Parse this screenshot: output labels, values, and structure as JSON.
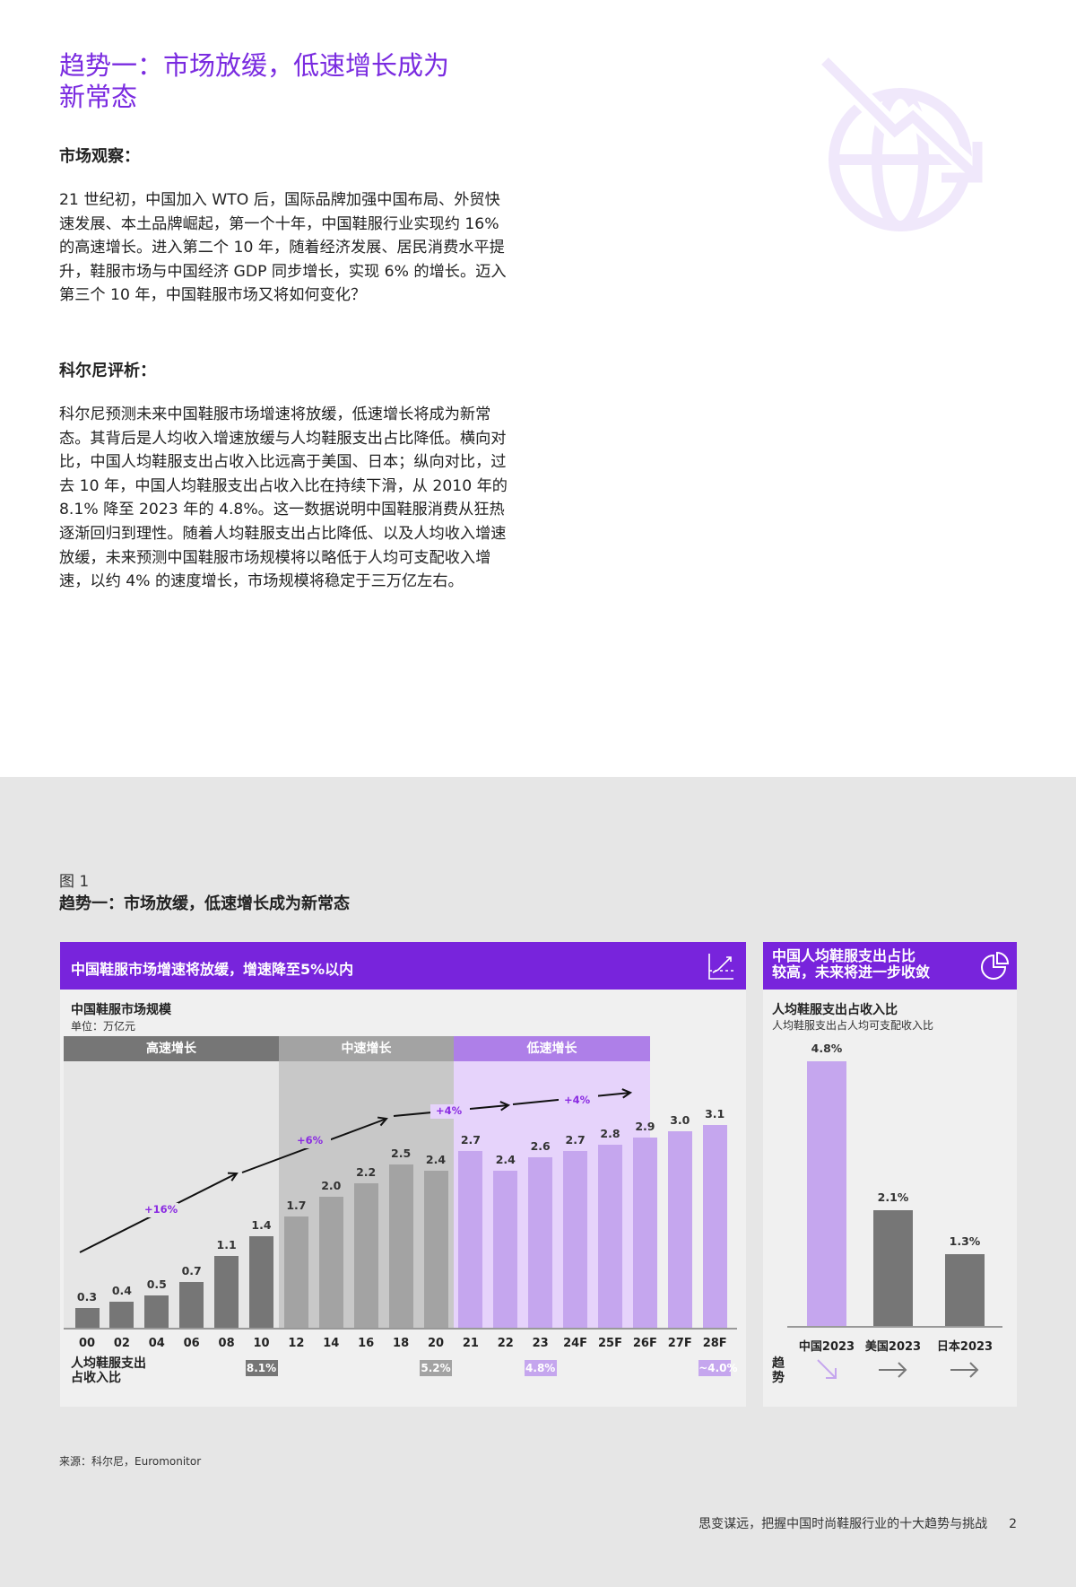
{
  "page": {
    "title": "趋势一：市场放缓，低速增长成为新常态",
    "sections": [
      {
        "heading": "市场观察：",
        "body": "21 世纪初，中国加入 WTO 后，国际品牌加强中国布局、外贸快速发展、本土品牌崛起，第一个十年，中国鞋服行业实现约 16% 的高速增长。进入第二个 10 年，随着经济发展、居民消费水平提升，鞋服市场与中国经济 GDP 同步增长，实现 6% 的增长。迈入第三个 10 年，中国鞋服市场又将如何变化？"
      },
      {
        "heading": "科尔尼评析：",
        "body": "科尔尼预测未来中国鞋服市场增速将放缓，低速增长将成为新常态。其背后是人均收入增速放缓与人均鞋服支出占比降低。横向对比，中国人均鞋服支出占收入比远高于美国、日本；纵向对比，过去 10 年，中国人均鞋服支出占收入比在持续下滑，从 2010 年的 8.1% 降至 2023 年的 4.8%。这一数据说明中国鞋服消费从狂热逐渐回归到理性。随着人均鞋服支出占比降低、以及人均收入增速放缓，未来预测中国鞋服市场规模将以略低于人均可支配收入增速，以约 4% 的速度增长，市场规模将稳定于三万亿左右。"
      }
    ],
    "decor_icon": "globe-down-trend-icon"
  },
  "figure": {
    "label": "图 1",
    "title": "趋势一：市场放缓，低速增长成为新常态",
    "source": "来源：科尔尼，Euromonitor"
  },
  "left_panel": {
    "header": "中国鞋服市场增速将放缓，增速降至5%以内",
    "icon": "line-chart-icon",
    "chart_title": "中国鞋服市场规模",
    "unit": "单位：万亿元",
    "phases": [
      {
        "label": "高速增长",
        "color": "#767676",
        "bg": "#e6e6e6"
      },
      {
        "label": "中速增长",
        "color": "#a3a3a3",
        "bg": "#c8c8c8"
      },
      {
        "label": "低速增长",
        "color": "#ae7fe8",
        "bg": "#e6d3fb"
      }
    ],
    "row_label": "人均鞋服支出占收入比",
    "row_label_lines": [
      "人均鞋服支出",
      "占收入比"
    ]
  },
  "right_panel": {
    "header_lines": [
      "中国人均鞋服支出占比",
      "较高，未来将进一步收敛"
    ],
    "icon": "pie-chart-icon",
    "chart_title": "人均鞋服支出占收入比",
    "subtitle": "人均鞋服支出占人均可支配收入比",
    "trend_label": "趋势",
    "trend_label_lines": [
      "趋",
      "势"
    ]
  },
  "footer": {
    "text": "思变谋远，把握中国时尚鞋服行业的十大趋势与挑战",
    "page": "2"
  },
  "chart_data": [
    {
      "type": "bar",
      "title": "中国鞋服市场规模",
      "ylabel": "单位：万亿元",
      "xlabel": "",
      "categories": [
        "00",
        "02",
        "04",
        "06",
        "08",
        "10",
        "12",
        "14",
        "16",
        "18",
        "20",
        "21",
        "22",
        "23",
        "24F",
        "25F",
        "26F",
        "27F",
        "28F"
      ],
      "values": [
        0.3,
        0.4,
        0.5,
        0.7,
        1.1,
        1.4,
        1.7,
        2.0,
        2.2,
        2.5,
        2.4,
        2.7,
        2.4,
        2.6,
        2.7,
        2.8,
        2.9,
        3.0,
        3.1
      ],
      "value_labels": [
        "0.3",
        "0.4",
        "0.5",
        "0.7",
        "1.1",
        "1.4",
        "1.7",
        "2.0",
        "2.2",
        "2.5",
        "2.4",
        "2.7",
        "2.4",
        "2.6",
        "2.7",
        "2.8",
        "2.9",
        "3.0",
        "3.1"
      ],
      "phase_of_bar": [
        0,
        0,
        0,
        0,
        0,
        0,
        1,
        1,
        1,
        1,
        1,
        2,
        2,
        2,
        2,
        2,
        2,
        2,
        2
      ],
      "bar_colors": [
        "#767676",
        "#a3a3a3",
        "#c5a6ee"
      ],
      "phases": [
        "高速增长",
        "中速增长",
        "低速增长"
      ],
      "growth_annotations": [
        {
          "label": "+16%",
          "period": "00-10"
        },
        {
          "label": "+6%",
          "period": "10-20"
        },
        {
          "label": "+4%",
          "period": "20-24F"
        },
        {
          "label": "+4%",
          "period": "24F-28F"
        }
      ],
      "spend_ratio_badges": [
        {
          "category": "10",
          "label": "8.1%",
          "color": "#767676"
        },
        {
          "category": "20",
          "label": "5.2%",
          "color": "#a3a3a3"
        },
        {
          "category": "23",
          "label": "4.8%",
          "color": "#c5a6ee"
        },
        {
          "category": "28F",
          "label": "~4.0%",
          "color": "#c5a6ee"
        }
      ],
      "ylim": [
        0,
        3.5
      ],
      "grid": false,
      "legend": "none"
    },
    {
      "type": "bar",
      "title": "人均鞋服支出占收入比",
      "subtitle": "人均鞋服支出占人均可支配收入比",
      "categories": [
        "中国2023",
        "美国2023",
        "日本2023"
      ],
      "values": [
        4.8,
        2.1,
        1.3
      ],
      "value_labels": [
        "4.8%",
        "2.1%",
        "1.3%"
      ],
      "bar_colors": [
        "#c5a6ee",
        "#767676",
        "#767676"
      ],
      "trends": [
        "down",
        "flat",
        "flat"
      ],
      "ylim": [
        0,
        5
      ],
      "grid": false,
      "legend": "none"
    }
  ]
}
